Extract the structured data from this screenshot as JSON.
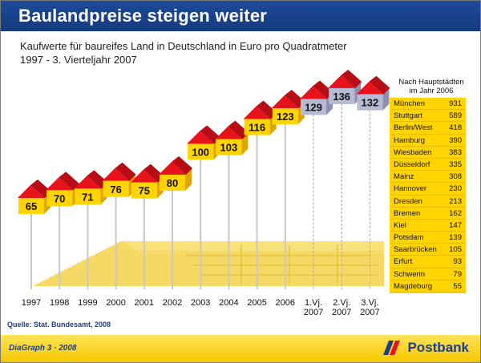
{
  "title": "Baulandpreise steigen weiter",
  "subtitle_line1": "Kaufwerte für baureifes Land in Deutschland in Euro pro Quadratmeter",
  "subtitle_line2": "1997 - 3. Vierteljahr 2007",
  "source": "Quelle: Stat. Bundesamt, 2008",
  "footer": {
    "label": "DiaGraph 3 · 2008",
    "brand": "Postbank"
  },
  "colors": {
    "title_bar": "#1d4a9a",
    "house_roof": "#e8121b",
    "house_wall": "#ffd400",
    "house_quarter": "#b7bad4",
    "brand_yellow": "#ffd400",
    "brand_blue": "#1d3f86"
  },
  "chart_data": {
    "type": "bar",
    "categories": [
      "1997",
      "1998",
      "1999",
      "2000",
      "2001",
      "2002",
      "2003",
      "2004",
      "2005",
      "2006",
      "1.Vj. 2007",
      "2.Vj. 2007",
      "3.Vj. 2007"
    ],
    "values": [
      65,
      70,
      71,
      76,
      75,
      80,
      100,
      103,
      116,
      123,
      129,
      136,
      132
    ],
    "title": "Baulandpreise steigen weiter",
    "unit": "Euro pro Quadratmeter"
  },
  "side_table": {
    "title_line1": "Nach Hauptstädten",
    "title_line2": "im Jahr 2006",
    "rows": [
      {
        "city": "München",
        "value": "931"
      },
      {
        "city": "Stuttgart",
        "value": "589"
      },
      {
        "city": "Berlin/West",
        "value": "418"
      },
      {
        "city": "Hamburg",
        "value": "390"
      },
      {
        "city": "Wiesbaden",
        "value": "383"
      },
      {
        "city": "Düsseldorf",
        "value": "335"
      },
      {
        "city": "Mainz",
        "value": "308"
      },
      {
        "city": "Hannover",
        "value": "230"
      },
      {
        "city": "Dresden",
        "value": "213"
      },
      {
        "city": "Bremen",
        "value": "162"
      },
      {
        "city": "Kiel",
        "value": "147"
      },
      {
        "city": "Potsdam",
        "value": "139"
      },
      {
        "city": "Saarbrücken",
        "value": "105"
      },
      {
        "city": "Erfurt",
        "value": "93"
      },
      {
        "city": "Schwerin",
        "value": "79"
      },
      {
        "city": "Magdeburg",
        "value": "55"
      }
    ]
  }
}
